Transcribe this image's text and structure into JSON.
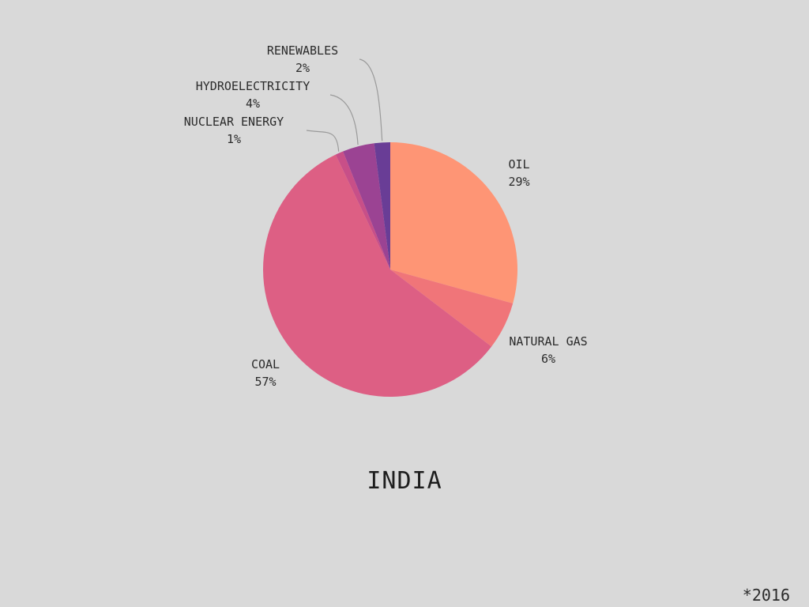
{
  "chart_data": {
    "type": "pie",
    "title": "INDIA",
    "footnote": "*2016",
    "slices": [
      {
        "label": "OIL",
        "value": 29,
        "display": "29%",
        "color": "#fe9575"
      },
      {
        "label": "NATURAL GAS",
        "value": 6,
        "display": "6%",
        "color": "#f07579"
      },
      {
        "label": "COAL",
        "value": 57,
        "display": "57%",
        "color": "#dd5f84"
      },
      {
        "label": "NUCLEAR ENERGY",
        "value": 1,
        "display": "1%",
        "color": "#c84f88"
      },
      {
        "label": "HYDROELECTRICITY",
        "value": 4,
        "display": "4%",
        "color": "#9b4393"
      },
      {
        "label": "RENEWABLES",
        "value": 2,
        "display": "2%",
        "color": "#693d96"
      }
    ],
    "start_angle": "12 o'clock",
    "direction": "clockwise",
    "legend": "none (direct labels)"
  }
}
